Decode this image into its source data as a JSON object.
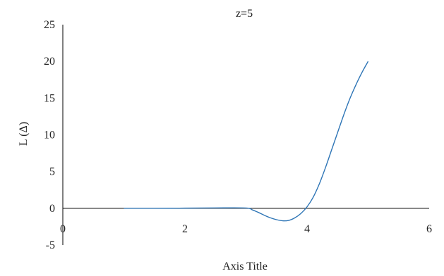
{
  "chart_data": {
    "type": "line",
    "title": "z=5",
    "xlabel": "Axis Title",
    "ylabel": "L (Δ)",
    "xlim": [
      0,
      6
    ],
    "ylim": [
      -5,
      25
    ],
    "x_ticks": [
      {
        "value": 0,
        "label": "0"
      },
      {
        "value": 2,
        "label": "2"
      },
      {
        "value": 4,
        "label": "4"
      },
      {
        "value": 6,
        "label": "6"
      }
    ],
    "y_ticks": [
      {
        "value": -5,
        "label": "-5"
      },
      {
        "value": 0,
        "label": "0"
      },
      {
        "value": 5,
        "label": "5"
      },
      {
        "value": 10,
        "label": "10"
      },
      {
        "value": 15,
        "label": "15"
      },
      {
        "value": 20,
        "label": "20"
      },
      {
        "value": 25,
        "label": "25"
      }
    ],
    "grid": false,
    "legend": "none",
    "series": [
      {
        "color": "#2e75b6",
        "x": [
          1.0,
          1.5,
          2.0,
          2.5,
          3.0,
          3.1,
          3.2,
          3.3,
          3.4,
          3.5,
          3.6,
          3.7,
          3.8,
          3.9,
          4.0,
          4.1,
          4.2,
          4.3,
          4.4,
          4.5,
          4.6,
          4.7,
          4.8,
          4.9,
          5.0
        ],
        "y": [
          0.0,
          0.0,
          0.02,
          0.05,
          0.04,
          -0.2,
          -0.55,
          -0.95,
          -1.3,
          -1.55,
          -1.7,
          -1.65,
          -1.3,
          -0.7,
          0.2,
          1.5,
          3.3,
          5.5,
          7.9,
          10.3,
          12.7,
          14.9,
          16.8,
          18.5,
          20.0
        ]
      }
    ]
  }
}
